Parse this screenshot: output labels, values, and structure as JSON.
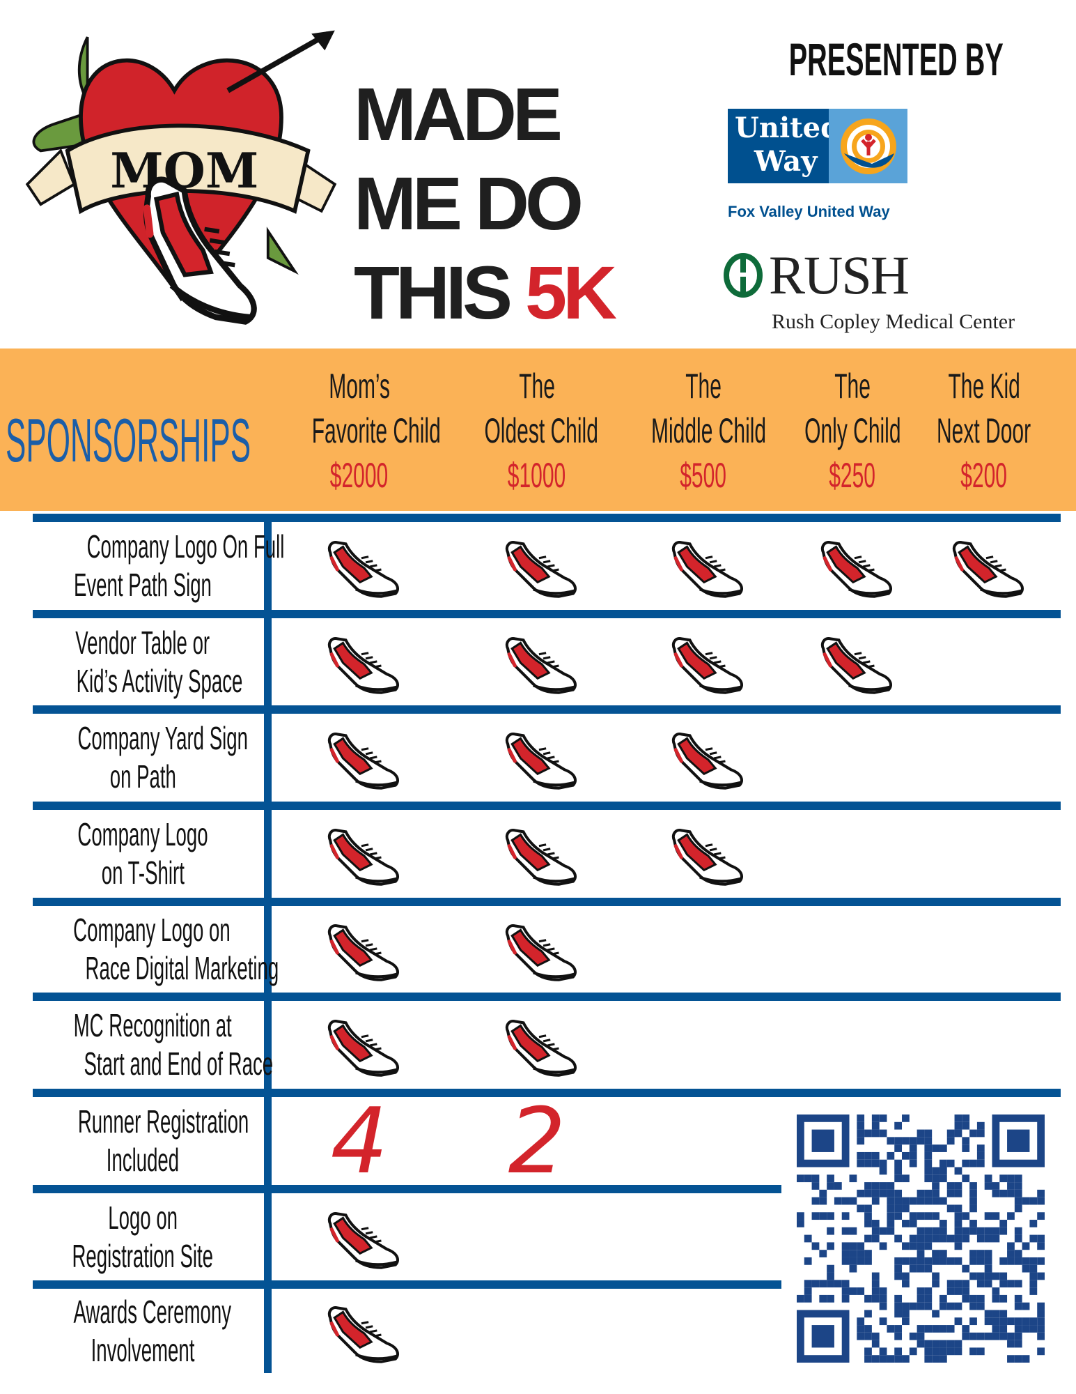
{
  "logo": {
    "banner_text": "MOM",
    "title_lines": [
      "MADE",
      "ME DO",
      "THIS"
    ],
    "title_accent": "5K"
  },
  "presented_by": "PRESENTED BY",
  "sponsors": [
    {
      "name": "United Way",
      "sub": "Fox Valley United Way"
    },
    {
      "name": "RUSH",
      "sub": "Rush Copley Medical Center"
    }
  ],
  "table": {
    "title": "SPONSORSHIPS",
    "tiers": [
      {
        "name": [
          "Mom’s",
          "Favorite Child"
        ],
        "price": "$2000"
      },
      {
        "name": [
          "The",
          "Oldest Child"
        ],
        "price": "$1000"
      },
      {
        "name": [
          "The",
          "Middle Child"
        ],
        "price": "$500"
      },
      {
        "name": [
          "The",
          "Only Child"
        ],
        "price": "$250"
      },
      {
        "name": [
          "The Kid",
          "Next Door"
        ],
        "price": "$200"
      }
    ],
    "rows": [
      {
        "label": [
          "Company Logo On Full",
          "Event Path Sign"
        ],
        "cells": [
          true,
          true,
          true,
          true,
          true
        ]
      },
      {
        "label": [
          "Vendor Table or",
          "Kid’s Activity Space"
        ],
        "cells": [
          true,
          true,
          true,
          true,
          false
        ]
      },
      {
        "label": [
          "Company Yard Sign",
          "on Path"
        ],
        "cells": [
          true,
          true,
          true,
          false,
          false
        ]
      },
      {
        "label": [
          "Company Logo",
          "on T-Shirt"
        ],
        "cells": [
          true,
          true,
          true,
          false,
          false
        ]
      },
      {
        "label": [
          "Company Logo on",
          "Race Digital Marketing"
        ],
        "cells": [
          true,
          true,
          false,
          false,
          false
        ]
      },
      {
        "label": [
          "MC Recognition at",
          "Start and End of Race"
        ],
        "cells": [
          true,
          true,
          false,
          false,
          false
        ]
      },
      {
        "label": [
          "Runner Registration",
          "Included"
        ],
        "cells": [
          "4",
          "2",
          false,
          false,
          false
        ]
      },
      {
        "label": [
          "Logo on",
          "Registration Site"
        ],
        "cells": [
          true,
          false,
          false,
          false,
          false
        ]
      },
      {
        "label": [
          "Awards Ceremony",
          "Involvement"
        ],
        "cells": [
          true,
          false,
          false,
          false,
          false
        ]
      }
    ]
  },
  "colors": {
    "orange": "#fbb256",
    "blue": "#045394",
    "red": "#d3242b"
  },
  "icons": {
    "check_mark": "running-shoe-icon",
    "qr": "qr-code"
  }
}
